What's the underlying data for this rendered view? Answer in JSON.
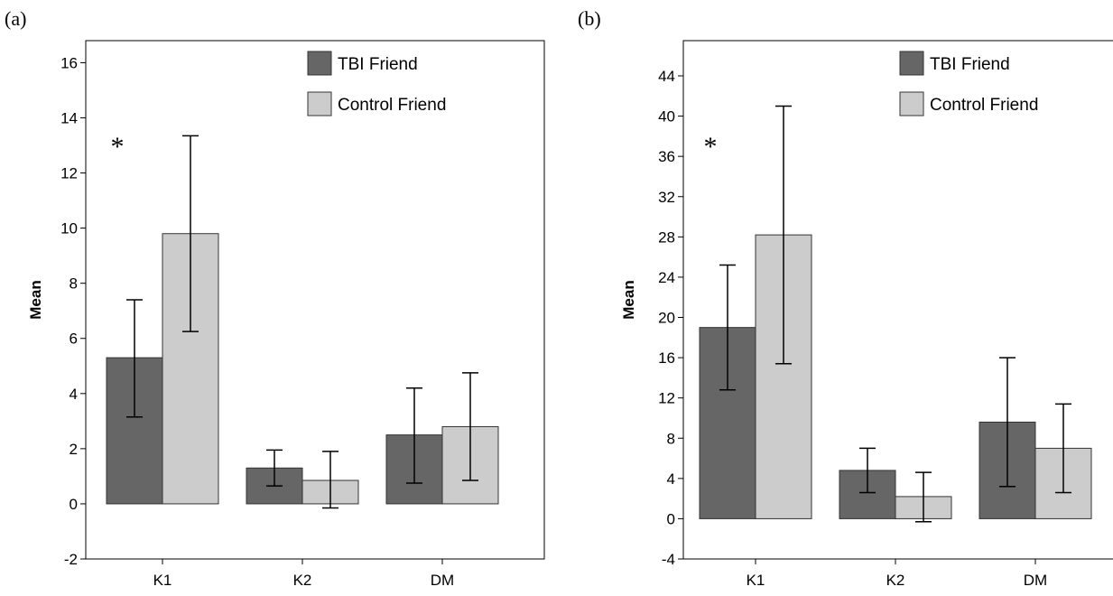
{
  "chart_data": [
    {
      "type": "bar",
      "panel_label": "(a)",
      "title": "",
      "xlabel": "",
      "ylabel": "Mean",
      "ylim": [
        -2,
        16.8
      ],
      "yticks": [
        -2,
        0,
        2,
        4,
        6,
        8,
        10,
        12,
        14,
        16
      ],
      "categories": [
        "K1",
        "K2",
        "DM"
      ],
      "series": [
        {
          "name": "TBI Friend",
          "color": "#666666",
          "values": [
            5.3,
            1.3,
            2.5
          ],
          "err_low": [
            3.15,
            0.65,
            0.75
          ],
          "err_high": [
            7.4,
            1.95,
            4.2
          ]
        },
        {
          "name": "Control Friend",
          "color": "#cccccc",
          "values": [
            9.8,
            0.85,
            2.8
          ],
          "err_low": [
            6.25,
            -0.15,
            0.85
          ],
          "err_high": [
            13.35,
            1.9,
            4.75
          ]
        }
      ],
      "legend": {
        "position": "top-right"
      },
      "annotations": [
        {
          "text": "*",
          "category": "K1"
        }
      ],
      "grid": false
    },
    {
      "type": "bar",
      "panel_label": "(b)",
      "title": "",
      "xlabel": "",
      "ylabel": "Mean",
      "ylim": [
        -4,
        47.5
      ],
      "yticks": [
        -4,
        0,
        4,
        8,
        12,
        16,
        20,
        24,
        28,
        32,
        36,
        40,
        44
      ],
      "categories": [
        "K1",
        "K2",
        "DM"
      ],
      "series": [
        {
          "name": "TBI Friend",
          "color": "#666666",
          "values": [
            19.0,
            4.8,
            9.6
          ],
          "err_low": [
            12.8,
            2.6,
            3.2
          ],
          "err_high": [
            25.2,
            7.0,
            16.0
          ]
        },
        {
          "name": "Control Friend",
          "color": "#cccccc",
          "values": [
            28.2,
            2.2,
            7.0
          ],
          "err_low": [
            15.4,
            -0.3,
            2.6
          ],
          "err_high": [
            41.0,
            4.6,
            11.4
          ]
        }
      ],
      "legend": {
        "position": "top-right"
      },
      "annotations": [
        {
          "text": "*",
          "category": "K1"
        }
      ],
      "grid": false
    }
  ]
}
